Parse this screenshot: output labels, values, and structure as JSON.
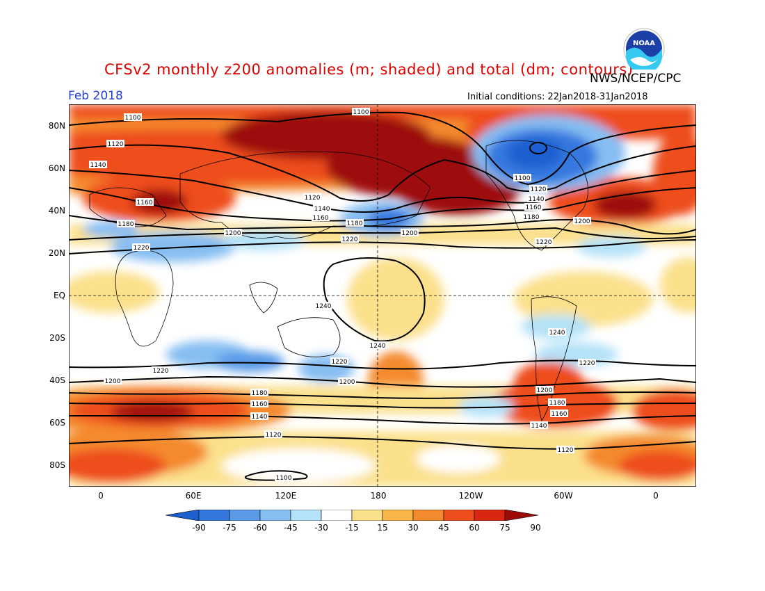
{
  "header": {
    "title": "CFSv2 monthly z200 anomalies (m; shaded) and total (dm; contours)",
    "agency": "NWS/NCEP/CPC",
    "month": "Feb 2018",
    "initial_conditions": "Initial conditions: 22Jan2018-31Jan2018",
    "logo_text": "NOAA"
  },
  "axes": {
    "lat_labels": [
      "80N",
      "60N",
      "40N",
      "20N",
      "EQ",
      "20S",
      "40S",
      "60S",
      "80S"
    ],
    "lon_labels": [
      "0",
      "60E",
      "120E",
      "180",
      "120W",
      "60W",
      "0"
    ]
  },
  "contour_labels": [
    "1100",
    "1120",
    "1140",
    "1160",
    "1180",
    "1200",
    "1220",
    "1240"
  ],
  "colorbar": {
    "ticks": [
      "-90",
      "-75",
      "-60",
      "-45",
      "-30",
      "-15",
      "15",
      "30",
      "45",
      "60",
      "75",
      "90"
    ],
    "colors": [
      "#1e5fd0",
      "#3478de",
      "#5a9be8",
      "#86bef2",
      "#b4e2f8",
      "#ffffff",
      "#fbe08c",
      "#f8b648",
      "#f48a2e",
      "#ee4e1c",
      "#d82610",
      "#9e0a08"
    ]
  },
  "colors": {
    "title": "#e00000",
    "month": "#1f3fd8",
    "strong_positive": "#9e0a08",
    "strong_negative": "#1e5fd0"
  }
}
